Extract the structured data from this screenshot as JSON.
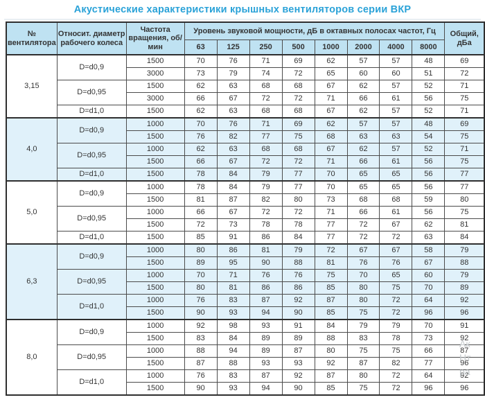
{
  "title": "Акустические характеристики крышных вентиляторов серии ВКР",
  "colors": {
    "title_accent": "#2aa2d8",
    "header_bg": "#bfe2f2",
    "band_bg": "#e0f1fa",
    "border": "#2e2e2e",
    "text": "#333333"
  },
  "watermark": [
    "Ак",
    "Нт",
    "ра"
  ],
  "table": {
    "headers": {
      "fan": "№ вентилятора",
      "diameter": "Относит. диаметр рабочего колеса",
      "rpm": "Частота вращения, об/мин",
      "octave_group": "Уровень звуковой мощности, дБ в октавных полосах частот, Гц",
      "frequencies": [
        "63",
        "125",
        "250",
        "500",
        "1000",
        "2000",
        "4000",
        "8000"
      ],
      "total": "Общий, дБа"
    },
    "sections": [
      {
        "fan": "3,15",
        "shaded": false,
        "groups": [
          {
            "diameter": "D=d0,9",
            "rows": [
              {
                "rpm": "1500",
                "levels": [
                  70,
                  76,
                  71,
                  69,
                  62,
                  57,
                  57,
                  48
                ],
                "total": 69
              },
              {
                "rpm": "3000",
                "levels": [
                  73,
                  79,
                  74,
                  72,
                  65,
                  60,
                  60,
                  51
                ],
                "total": 72
              }
            ]
          },
          {
            "diameter": "D=d0,95",
            "rows": [
              {
                "rpm": "1500",
                "levels": [
                  62,
                  63,
                  68,
                  68,
                  67,
                  62,
                  57,
                  52
                ],
                "total": 71
              },
              {
                "rpm": "3000",
                "levels": [
                  66,
                  67,
                  72,
                  72,
                  71,
                  66,
                  61,
                  56
                ],
                "total": 75
              }
            ]
          },
          {
            "diameter": "D=d1,0",
            "rows": [
              {
                "rpm": "1500",
                "levels": [
                  62,
                  63,
                  68,
                  68,
                  67,
                  62,
                  57,
                  52
                ],
                "total": 71
              }
            ]
          }
        ]
      },
      {
        "fan": "4,0",
        "shaded": true,
        "groups": [
          {
            "diameter": "D=d0,9",
            "rows": [
              {
                "rpm": "1000",
                "levels": [
                  70,
                  76,
                  71,
                  69,
                  62,
                  57,
                  57,
                  48
                ],
                "total": 69
              },
              {
                "rpm": "1500",
                "levels": [
                  76,
                  82,
                  77,
                  75,
                  68,
                  63,
                  63,
                  54
                ],
                "total": 75
              }
            ]
          },
          {
            "diameter": "D=d0,95",
            "rows": [
              {
                "rpm": "1000",
                "levels": [
                  62,
                  63,
                  68,
                  68,
                  67,
                  62,
                  57,
                  52
                ],
                "total": 71
              },
              {
                "rpm": "1500",
                "levels": [
                  66,
                  67,
                  72,
                  72,
                  71,
                  66,
                  61,
                  56
                ],
                "total": 75
              }
            ]
          },
          {
            "diameter": "D=d1,0",
            "rows": [
              {
                "rpm": "1500",
                "levels": [
                  78,
                  84,
                  79,
                  77,
                  70,
                  65,
                  65,
                  56
                ],
                "total": 77
              }
            ]
          }
        ]
      },
      {
        "fan": "5,0",
        "shaded": false,
        "groups": [
          {
            "diameter": "D=d0,9",
            "rows": [
              {
                "rpm": "1000",
                "levels": [
                  78,
                  84,
                  79,
                  77,
                  70,
                  65,
                  65,
                  56
                ],
                "total": 77
              },
              {
                "rpm": "1500",
                "levels": [
                  81,
                  87,
                  82,
                  80,
                  73,
                  68,
                  68,
                  59
                ],
                "total": 80
              }
            ]
          },
          {
            "diameter": "D=d0,95",
            "rows": [
              {
                "rpm": "1000",
                "levels": [
                  66,
                  67,
                  72,
                  72,
                  71,
                  66,
                  61,
                  56
                ],
                "total": 75
              },
              {
                "rpm": "1500",
                "levels": [
                  72,
                  73,
                  78,
                  78,
                  77,
                  72,
                  67,
                  62
                ],
                "total": 81
              }
            ]
          },
          {
            "diameter": "D=d1,0",
            "rows": [
              {
                "rpm": "1500",
                "levels": [
                  85,
                  91,
                  86,
                  84,
                  77,
                  72,
                  72,
                  63
                ],
                "total": 84
              }
            ]
          }
        ]
      },
      {
        "fan": "6,3",
        "shaded": true,
        "groups": [
          {
            "diameter": "D=d0,9",
            "rows": [
              {
                "rpm": "1000",
                "levels": [
                  80,
                  86,
                  81,
                  79,
                  72,
                  67,
                  67,
                  58
                ],
                "total": 79
              },
              {
                "rpm": "1500",
                "levels": [
                  89,
                  95,
                  90,
                  88,
                  81,
                  76,
                  76,
                  67
                ],
                "total": 88
              }
            ]
          },
          {
            "diameter": "D=d0,95",
            "rows": [
              {
                "rpm": "1000",
                "levels": [
                  70,
                  71,
                  76,
                  76,
                  75,
                  70,
                  65,
                  60
                ],
                "total": 79
              },
              {
                "rpm": "1500",
                "levels": [
                  80,
                  81,
                  86,
                  86,
                  85,
                  80,
                  75,
                  70
                ],
                "total": 89
              }
            ]
          },
          {
            "diameter": "D=d1,0",
            "rows": [
              {
                "rpm": "1000",
                "levels": [
                  76,
                  83,
                  87,
                  92,
                  87,
                  80,
                  72,
                  64
                ],
                "total": 92
              },
              {
                "rpm": "1500",
                "levels": [
                  90,
                  93,
                  94,
                  90,
                  85,
                  75,
                  72,
                  96
                ],
                "total": 96
              }
            ]
          }
        ]
      },
      {
        "fan": "8,0",
        "shaded": false,
        "groups": [
          {
            "diameter": "D=d0,9",
            "rows": [
              {
                "rpm": "1000",
                "levels": [
                  92,
                  98,
                  93,
                  91,
                  84,
                  79,
                  79,
                  70
                ],
                "total": 91
              },
              {
                "rpm": "1500",
                "levels": [
                  83,
                  84,
                  89,
                  89,
                  88,
                  83,
                  78,
                  73
                ],
                "total": 92
              }
            ]
          },
          {
            "diameter": "D=d0,95",
            "rows": [
              {
                "rpm": "1000",
                "levels": [
                  88,
                  94,
                  89,
                  87,
                  80,
                  75,
                  75,
                  66
                ],
                "total": 87
              },
              {
                "rpm": "1500",
                "levels": [
                  87,
                  88,
                  93,
                  93,
                  92,
                  87,
                  82,
                  77
                ],
                "total": 96
              }
            ]
          },
          {
            "diameter": "D=d1,0",
            "rows": [
              {
                "rpm": "1000",
                "levels": [
                  76,
                  83,
                  87,
                  92,
                  87,
                  80,
                  72,
                  64
                ],
                "total": 92
              },
              {
                "rpm": "1500",
                "levels": [
                  90,
                  93,
                  94,
                  90,
                  85,
                  75,
                  72,
                  96
                ],
                "total": 96
              }
            ]
          }
        ]
      }
    ]
  }
}
